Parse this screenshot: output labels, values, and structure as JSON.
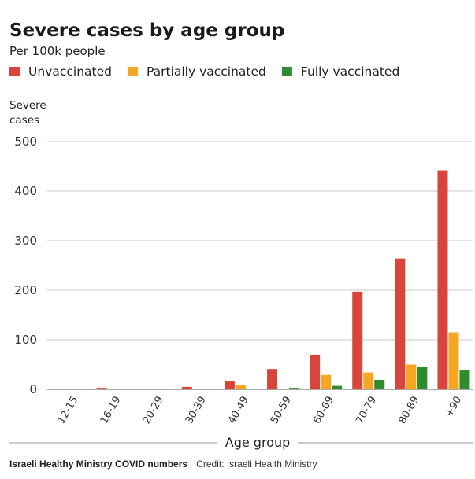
{
  "chart_data": {
    "type": "bar",
    "title": "Severe cases by age group",
    "subtitle": "Per 100k people",
    "ylabel": [
      "Severe",
      "cases"
    ],
    "xlabel": "Age group",
    "ylim": [
      0,
      500
    ],
    "yticks": [
      0,
      100,
      200,
      300,
      400,
      500
    ],
    "grid": true,
    "legend_position": "top-left",
    "categories": [
      "12-15",
      "16-19",
      "20-29",
      "30-39",
      "40-49",
      "50-59",
      "60-69",
      "70-79",
      "80-89",
      "+90"
    ],
    "series": [
      {
        "name": "Unvaccinated",
        "color": "#d9453b",
        "values": [
          1,
          3,
          1,
          5,
          17,
          41,
          70,
          197,
          264,
          442
        ]
      },
      {
        "name": "Partially vaccinated",
        "color": "#f5a623",
        "values": [
          1,
          1,
          1,
          1,
          8,
          1,
          29,
          34,
          50,
          115
        ]
      },
      {
        "name": "Fully vaccinated",
        "color": "#2e8b2e",
        "values": [
          1,
          1,
          1,
          1,
          1,
          3,
          7,
          19,
          45,
          38
        ]
      }
    ]
  },
  "footer": {
    "source": "Israeli Healthy Ministry COVID numbers",
    "credit": "Credit: Israeli Health Ministry"
  }
}
